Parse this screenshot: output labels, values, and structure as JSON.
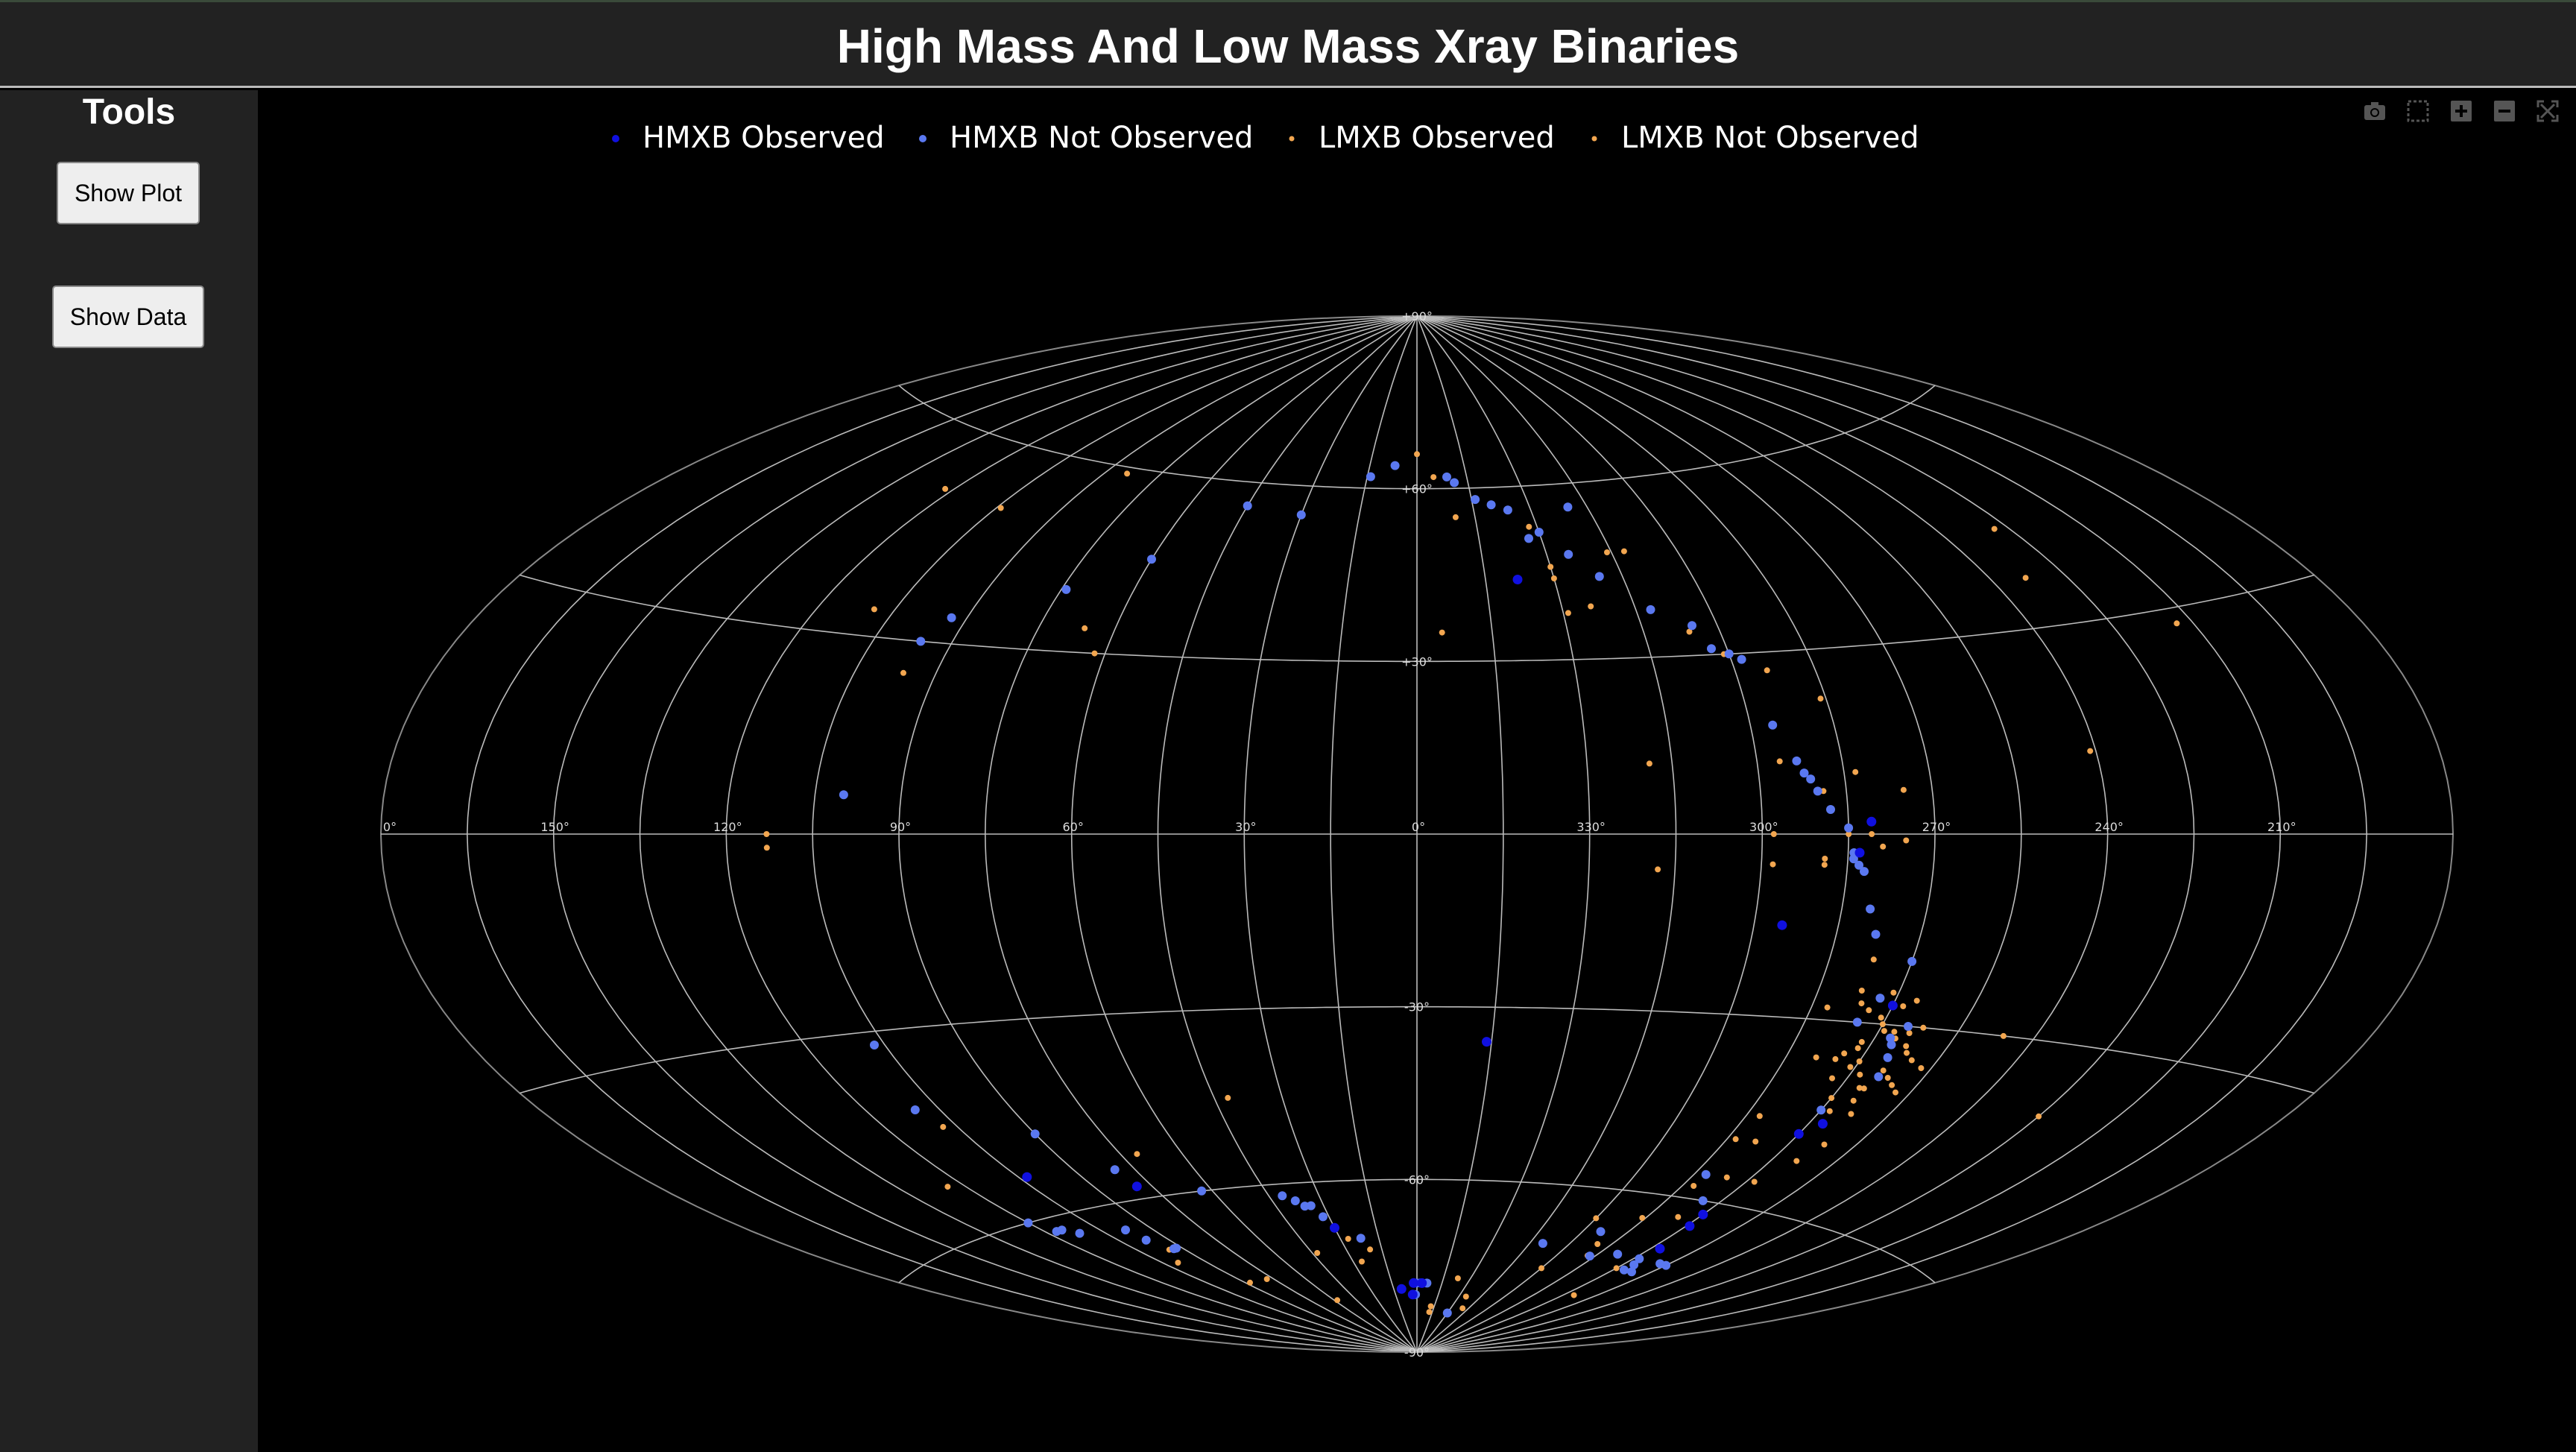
{
  "header": {
    "title": "High Mass And Low Mass Xray Binaries"
  },
  "sidebar": {
    "title": "Tools",
    "buttons": [
      "Show Plot",
      "Show Data"
    ]
  },
  "modebar": {
    "icons": [
      "camera-icon",
      "box-select-icon",
      "zoom-in-icon",
      "zoom-out-icon",
      "autoscale-icon"
    ]
  },
  "colors": {
    "hmxb_observed": "#1010e0",
    "hmxb_not_observed": "#5a78f0",
    "lmxb_observed": "#f2a650",
    "lmxb_not_observed": "#f2a650",
    "grid": "#bbbbbb",
    "background": "#000000",
    "panel": "#222222"
  },
  "chart_data": {
    "type": "scatter",
    "projection": "aitoff",
    "title": "High Mass And Low Mass Xray Binaries",
    "legend_placement": "top",
    "grid": true,
    "lon_ticks": [
      "0°",
      "150°",
      "120°",
      "90°",
      "60°",
      "30°",
      "0°",
      "330°",
      "300°",
      "270°",
      "240°",
      "210°"
    ],
    "lat_ticks": [
      "+90°",
      "+60°",
      "+30°",
      "-30°",
      "-60°",
      "-90°"
    ],
    "series": [
      {
        "name": "HMXB Observed",
        "marker": "large-dot",
        "points": [
          [
            103,
            -54
          ],
          [
            295,
            -15
          ],
          [
            267,
            -46
          ],
          [
            283,
            -3
          ],
          [
            281,
            2
          ],
          [
            267,
            -68
          ],
          [
            269,
            -64
          ],
          [
            270,
            -62
          ],
          [
            270,
            -48
          ],
          [
            3,
            -80
          ],
          [
            2,
            -78
          ],
          [
            357,
            -78
          ],
          [
            10,
            -79
          ],
          [
            270,
            -27
          ],
          [
            346,
            -36
          ],
          [
            30,
            -68
          ],
          [
            79,
            -58
          ],
          [
            338,
            44
          ]
        ]
      },
      {
        "name": "HMXB Not Observed",
        "marker": "large-dot",
        "points": [
          [
            100,
            6
          ],
          [
            93,
            34
          ],
          [
            96,
            30
          ],
          [
            74,
            40
          ],
          [
            60,
            46
          ],
          [
            45,
            56
          ],
          [
            30,
            55
          ],
          [
            14,
            62
          ],
          [
            7,
            64
          ],
          [
            349,
            61
          ],
          [
            351,
            62
          ],
          [
            344,
            58
          ],
          [
            340,
            57
          ],
          [
            336,
            56
          ],
          [
            330,
            52
          ],
          [
            333,
            51
          ],
          [
            325,
            48
          ],
          [
            320,
            44
          ],
          [
            320,
            56
          ],
          [
            312,
            38
          ],
          [
            305,
            35
          ],
          [
            303,
            31
          ],
          [
            300,
            30
          ],
          [
            298,
            29
          ],
          [
            296,
            18
          ],
          [
            293,
            12
          ],
          [
            292,
            10
          ],
          [
            291,
            9
          ],
          [
            290,
            7
          ],
          [
            288,
            4
          ],
          [
            285,
            1
          ],
          [
            284,
            -3
          ],
          [
            284,
            -4
          ],
          [
            283,
            -5
          ],
          [
            282,
            -6
          ],
          [
            280,
            -12
          ],
          [
            278,
            -16
          ],
          [
            270,
            -20
          ],
          [
            265,
            -30
          ],
          [
            267,
            -32
          ],
          [
            266,
            -33
          ],
          [
            265,
            -35
          ],
          [
            264,
            -38
          ],
          [
            275,
            -30
          ],
          [
            273,
            -26
          ],
          [
            270,
            -44
          ],
          [
            282,
            -56
          ],
          [
            275,
            -60
          ],
          [
            255,
            -70
          ],
          [
            258,
            -70
          ],
          [
            262,
            -72
          ],
          [
            266,
            -71
          ],
          [
            294,
            -67
          ],
          [
            310,
            -70
          ],
          [
            287,
            -71
          ],
          [
            278,
            -70
          ],
          [
            107,
            -32
          ],
          [
            110,
            -42
          ],
          [
            90,
            -48
          ],
          [
            80,
            -55
          ],
          [
            63,
            -60
          ],
          [
            41,
            -62
          ],
          [
            38,
            -63
          ],
          [
            36,
            -64
          ],
          [
            34,
            -64
          ],
          [
            32,
            -66
          ],
          [
            22,
            -70
          ],
          [
            120,
            -60
          ],
          [
            117,
            -62
          ],
          [
            115,
            -62
          ],
          [
            112,
            -63
          ],
          [
            98,
            -64
          ],
          [
            97,
            -66
          ],
          [
            92,
            -68
          ],
          [
            93,
            -68
          ],
          [
            0,
            -78
          ],
          [
            1,
            -80
          ],
          [
            358,
            -78
          ],
          [
            354,
            -78
          ],
          [
            330,
            -83
          ],
          [
            268,
            -70
          ],
          [
            266,
            -72
          ]
        ]
      },
      {
        "name": "LMXB Observed",
        "marker": "small-dot",
        "points": [
          [
            122,
            52
          ],
          [
            104,
            51
          ],
          [
            84,
            59
          ],
          [
            66,
            34
          ],
          [
            0,
            66
          ],
          [
            355,
            62
          ],
          [
            350,
            55
          ],
          [
            332,
            53
          ],
          [
            330,
            46
          ],
          [
            330,
            44
          ],
          [
            329,
            38
          ],
          [
            316,
            48
          ],
          [
            312,
            48
          ],
          [
            306,
            34
          ],
          [
            301,
            30
          ],
          [
            294,
            27
          ],
          [
            286,
            22
          ],
          [
            296,
            12
          ],
          [
            283,
            10
          ],
          [
            289,
            7
          ],
          [
            275,
            7
          ],
          [
            285,
            0
          ],
          [
            279,
            -2
          ],
          [
            281,
            0
          ],
          [
            298,
            -5
          ],
          [
            289,
            -4
          ],
          [
            283,
            -5
          ],
          [
            275,
            -1
          ],
          [
            278,
            -16
          ],
          [
            277,
            -20
          ],
          [
            277,
            -25
          ],
          [
            276,
            -27
          ],
          [
            274,
            -28
          ],
          [
            271,
            -29
          ],
          [
            270,
            -30
          ],
          [
            269,
            -31
          ],
          [
            267,
            -31
          ],
          [
            266,
            -32
          ],
          [
            265,
            -30
          ],
          [
            264,
            -31
          ],
          [
            263,
            -33
          ],
          [
            262,
            -34
          ],
          [
            260,
            -35
          ],
          [
            262,
            -30
          ],
          [
            266,
            -26
          ],
          [
            268,
            -27
          ],
          [
            271,
            -25
          ],
          [
            272,
            -33
          ],
          [
            270,
            -36
          ],
          [
            268,
            -38
          ],
          [
            266,
            -40
          ],
          [
            265,
            -42
          ],
          [
            268,
            -44
          ],
          [
            267,
            -46
          ],
          [
            263,
            -44
          ],
          [
            262,
            -49
          ],
          [
            264,
            -52
          ],
          [
            278,
            -50
          ],
          [
            282,
            -46
          ],
          [
            282,
            -58
          ],
          [
            276,
            -63
          ],
          [
            286,
            -64
          ],
          [
            290,
            -69
          ],
          [
            288,
            -71
          ],
          [
            270,
            -72
          ],
          [
            265,
            -77
          ],
          [
            300,
            -74
          ],
          [
            348,
            -83
          ],
          [
            246,
            -30
          ],
          [
            225,
            -40
          ],
          [
            233,
            37
          ],
          [
            213,
            28
          ],
          [
            228,
            44
          ],
          [
            241,
            12
          ],
          [
            113,
            -2
          ],
          [
            113,
            0
          ],
          [
            124,
            -53
          ],
          [
            95,
            -68
          ],
          [
            100,
            -70
          ],
          [
            88,
            -75
          ],
          [
            78,
            -75
          ],
          [
            58,
            -80
          ],
          [
            43,
            -72
          ],
          [
            27,
            -70
          ],
          [
            20,
            -72
          ],
          [
            26,
            -74
          ],
          [
            42,
            -45
          ],
          [
            275,
            -36
          ],
          [
            271,
            -37
          ],
          [
            273,
            -39
          ],
          [
            264,
            -37
          ],
          [
            262,
            -38
          ],
          [
            260,
            -39
          ],
          [
            258,
            -40
          ],
          [
            257,
            -36
          ],
          [
            265,
            -40
          ],
          [
            270,
            -42
          ],
          [
            272,
            -34
          ],
          [
            274,
            -35
          ]
        ]
      },
      {
        "name": "LMXB Not Observed",
        "marker": "small-dot",
        "points": [
          [
            109,
            34
          ],
          [
            96,
            25
          ],
          [
            62,
            30
          ],
          [
            355,
            35
          ],
          [
            324,
            39
          ],
          [
            319,
            12
          ],
          [
            318,
            -6
          ],
          [
            298,
            0
          ],
          [
            289,
            -5
          ],
          [
            282,
            -28
          ],
          [
            279,
            -36
          ],
          [
            283,
            -50
          ],
          [
            268,
            -56
          ],
          [
            276,
            -56
          ],
          [
            300,
            -65
          ],
          [
            320,
            -82
          ],
          [
            325,
            -80
          ],
          [
            337,
            -77
          ],
          [
            348,
            -82
          ],
          [
            71,
            -53
          ],
          [
            108,
            -45
          ]
        ]
      }
    ]
  }
}
